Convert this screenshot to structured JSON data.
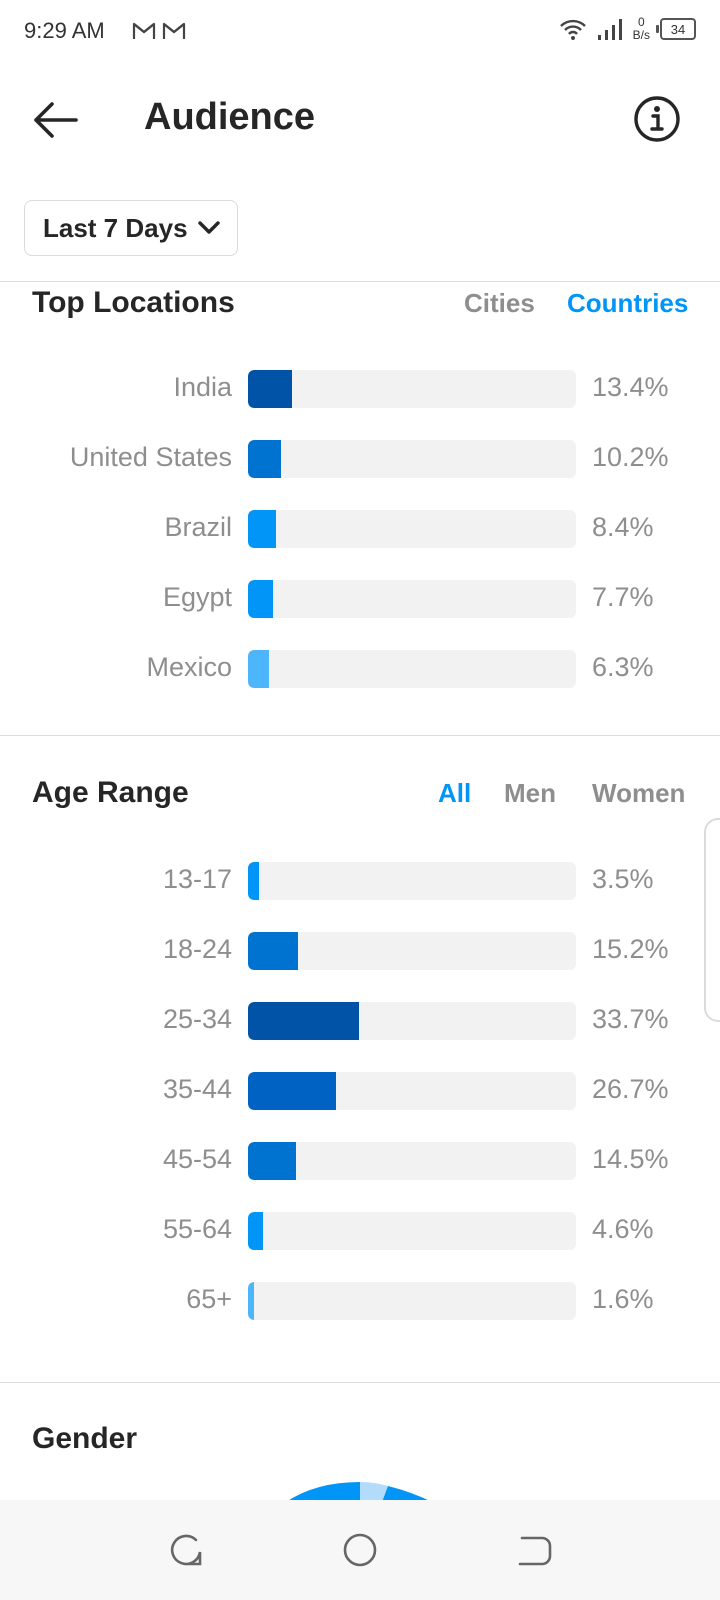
{
  "status": {
    "time": "9:29 AM",
    "net_speed_value": "0",
    "net_speed_unit": "B/s",
    "battery": "34"
  },
  "header": {
    "title": "Audience"
  },
  "range_button": {
    "label": "Last 7 Days"
  },
  "top_locations": {
    "title": "Top Locations",
    "tabs": [
      "Cities",
      "Countries"
    ],
    "active_tab": "Countries",
    "rows": [
      {
        "label": "India",
        "value": "13.4%",
        "fraction": 0.134,
        "color": "#0053a6"
      },
      {
        "label": "United States",
        "value": "10.2%",
        "fraction": 0.102,
        "color": "#0073d1"
      },
      {
        "label": "Brazil",
        "value": "8.4%",
        "fraction": 0.084,
        "color": "#0095f6"
      },
      {
        "label": "Egypt",
        "value": "7.7%",
        "fraction": 0.077,
        "color": "#0095f6"
      },
      {
        "label": "Mexico",
        "value": "6.3%",
        "fraction": 0.063,
        "color": "#4db5f9"
      }
    ]
  },
  "age_range": {
    "title": "Age Range",
    "tabs": [
      "All",
      "Men",
      "Women"
    ],
    "active_tab": "All",
    "rows": [
      {
        "label": "13-17",
        "value": "3.5%",
        "fraction": 0.035,
        "color": "#0095f6"
      },
      {
        "label": "18-24",
        "value": "15.2%",
        "fraction": 0.152,
        "color": "#0073d1"
      },
      {
        "label": "25-34",
        "value": "33.7%",
        "fraction": 0.337,
        "color": "#0053a6"
      },
      {
        "label": "35-44",
        "value": "26.7%",
        "fraction": 0.267,
        "color": "#0063c4"
      },
      {
        "label": "45-54",
        "value": "14.5%",
        "fraction": 0.145,
        "color": "#0073d1"
      },
      {
        "label": "55-64",
        "value": "4.6%",
        "fraction": 0.046,
        "color": "#0095f6"
      },
      {
        "label": "65+",
        "value": "1.6%",
        "fraction": 0.016,
        "color": "#4db5f9"
      }
    ]
  },
  "gender": {
    "title": "Gender"
  },
  "colors": {
    "accent": "#0095f6",
    "muted": "#8e8e8e",
    "track": "#f2f2f2"
  },
  "icons": [
    "gmail-icon",
    "wifi-icon",
    "signal-icon",
    "battery-icon",
    "back-arrow-icon",
    "info-icon",
    "chevron-down-icon",
    "recents-icon",
    "home-icon",
    "back-nav-icon"
  ]
}
